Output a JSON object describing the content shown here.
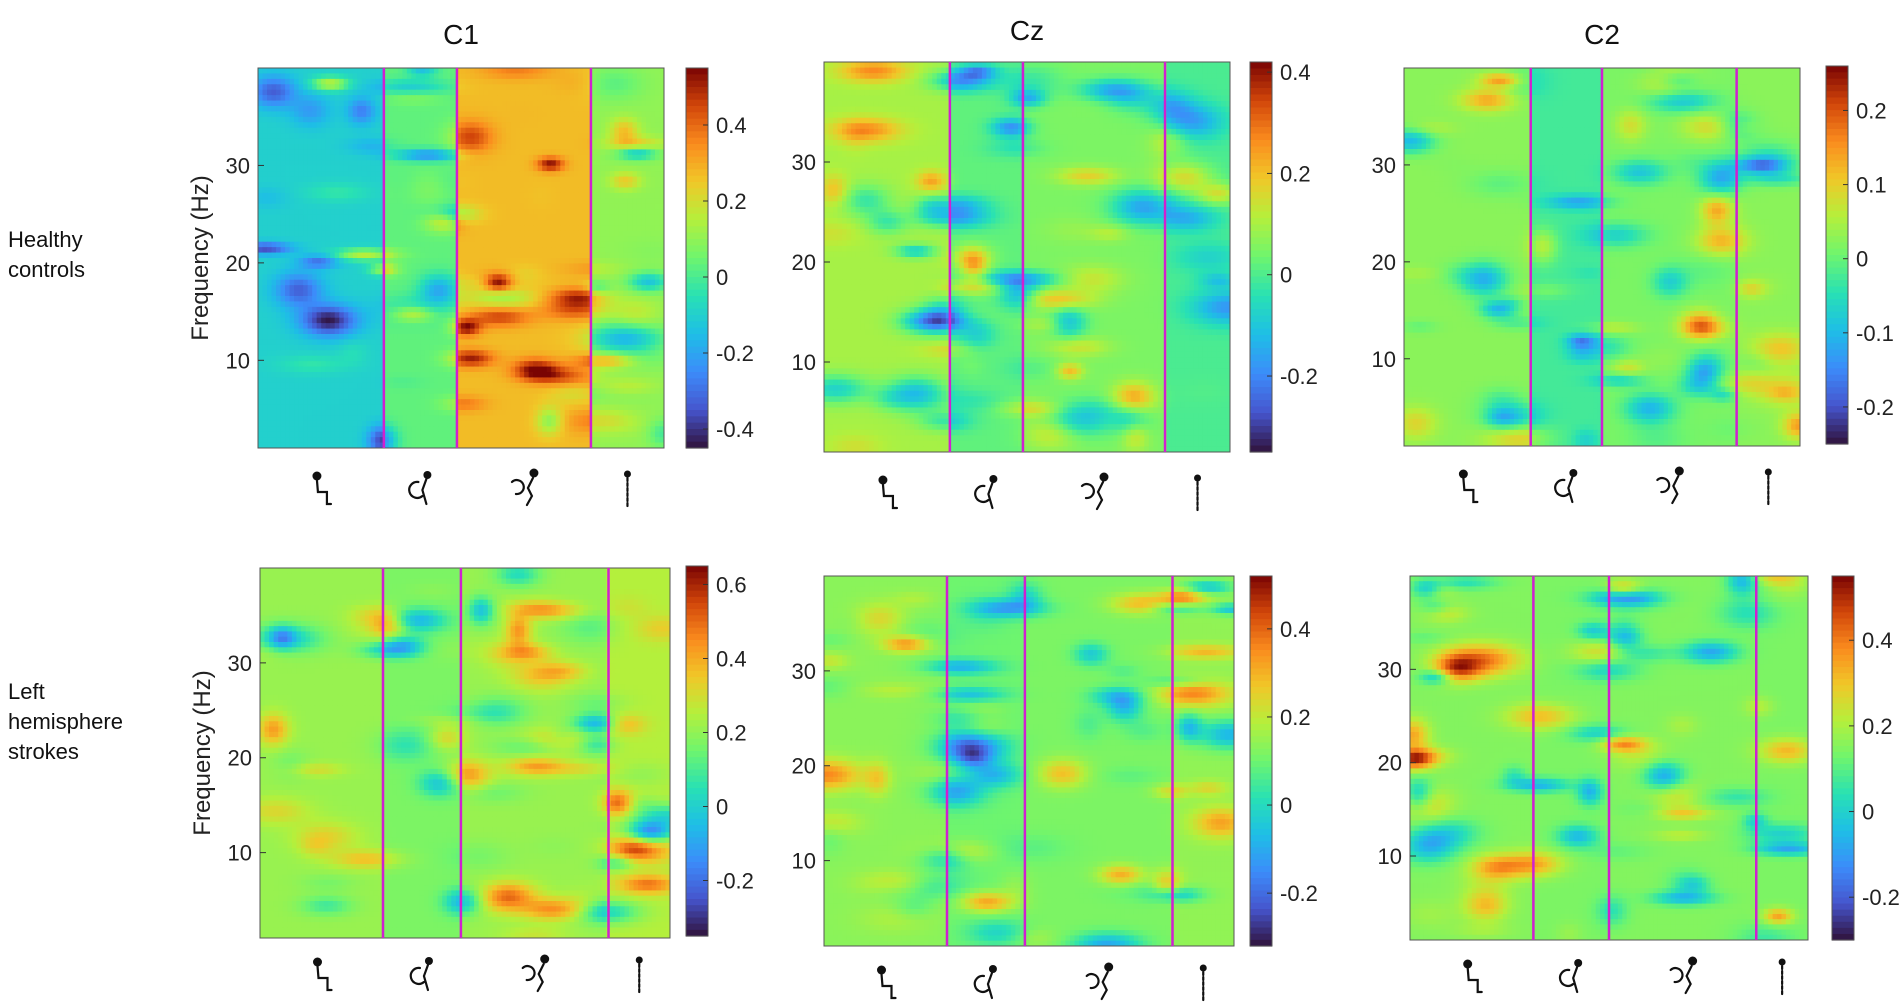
{
  "chart_data": [
    {
      "type": "heatmap",
      "title": "C1",
      "group": "Healthy controls",
      "ylabel": "Frequency (Hz)",
      "yticks": [
        10,
        20,
        30
      ],
      "ylim": [
        1,
        40
      ],
      "colorbar": {
        "ticks": [
          -0.4,
          -0.2,
          0,
          0.2,
          0.4
        ],
        "tick_labels": [
          "-0.4",
          "-0.2",
          "0",
          "0.2",
          "0.4"
        ],
        "range": [
          -0.45,
          0.55
        ]
      },
      "phases": 4,
      "phase_boundaries_frac": [
        0.31,
        0.49,
        0.82
      ],
      "seed": 11,
      "bias": [
        -0.15,
        -0.02,
        0.22,
        0.05
      ]
    },
    {
      "type": "heatmap",
      "title": "Cz",
      "group": "Healthy controls",
      "ylabel": "",
      "yticks": [
        10,
        20,
        30
      ],
      "ylim": [
        1,
        40
      ],
      "colorbar": {
        "ticks": [
          -0.2,
          0,
          0.2,
          0.4
        ],
        "tick_labels": [
          "-0.2",
          "0",
          "0.2",
          "0.4"
        ],
        "range": [
          -0.35,
          0.42
        ]
      },
      "phases": 4,
      "phase_boundaries_frac": [
        0.31,
        0.49,
        0.84
      ],
      "seed": 23,
      "bias": [
        0.08,
        -0.02,
        0.02,
        -0.05
      ]
    },
    {
      "type": "heatmap",
      "title": "C2",
      "group": "Healthy controls",
      "ylabel": "",
      "yticks": [
        10,
        20,
        30
      ],
      "ylim": [
        1,
        40
      ],
      "colorbar": {
        "ticks": [
          -0.2,
          -0.1,
          0,
          0.1,
          0.2
        ],
        "tick_labels": [
          "-0.2",
          "-0.1",
          "0",
          "0.1",
          "0.2"
        ],
        "range": [
          -0.25,
          0.26
        ]
      },
      "phases": 4,
      "phase_boundaries_frac": [
        0.32,
        0.5,
        0.84
      ],
      "seed": 37,
      "bias": [
        0.04,
        -0.06,
        0.02,
        0.04
      ]
    },
    {
      "type": "heatmap",
      "title": "",
      "group": "Left hemisphere strokes",
      "ylabel": "Frequency (Hz)",
      "yticks": [
        10,
        20,
        30
      ],
      "ylim": [
        1,
        40
      ],
      "colorbar": {
        "ticks": [
          -0.2,
          0,
          0.2,
          0.4,
          0.6
        ],
        "tick_labels": [
          "-0.2",
          "0",
          "0.2",
          "0.4",
          "0.6"
        ],
        "range": [
          -0.35,
          0.65
        ]
      },
      "phases": 4,
      "phase_boundaries_frac": [
        0.3,
        0.49,
        0.85
      ],
      "seed": 41,
      "bias": [
        0.06,
        0.02,
        0.06,
        0.1
      ]
    },
    {
      "type": "heatmap",
      "title": "",
      "group": "Left hemisphere strokes",
      "ylabel": "",
      "yticks": [
        10,
        20,
        30
      ],
      "ylim": [
        1,
        40
      ],
      "colorbar": {
        "ticks": [
          -0.2,
          0,
          0.2,
          0.4
        ],
        "tick_labels": [
          "-0.2",
          "0",
          "0.2",
          "0.4"
        ],
        "range": [
          -0.32,
          0.52
        ]
      },
      "phases": 4,
      "phase_boundaries_frac": [
        0.3,
        0.49,
        0.85
      ],
      "seed": 53,
      "bias": [
        0.04,
        0.0,
        0.02,
        0.05
      ]
    },
    {
      "type": "heatmap",
      "title": "",
      "group": "Left hemisphere strokes",
      "ylabel": "",
      "yticks": [
        10,
        20,
        30
      ],
      "ylim": [
        1,
        40
      ],
      "colorbar": {
        "ticks": [
          -0.2,
          0,
          0.2,
          0.4
        ],
        "tick_labels": [
          "-0.2",
          "0",
          "0.2",
          "0.4"
        ],
        "range": [
          -0.3,
          0.55
        ]
      },
      "phases": 4,
      "phase_boundaries_frac": [
        0.31,
        0.5,
        0.87
      ],
      "seed": 67,
      "bias": [
        0.03,
        0.02,
        0.03,
        0.02
      ]
    }
  ],
  "row_labels": [
    [
      "Healthy",
      "controls"
    ],
    [
      "Left",
      "hemisphere",
      "strokes"
    ]
  ],
  "phase_icons": [
    "sit-icon",
    "sit-to-stand-icon",
    "stand-to-sit-icon",
    "stand-icon"
  ],
  "colors": {
    "boundary": "#d020d0",
    "colormap": "turbo"
  }
}
